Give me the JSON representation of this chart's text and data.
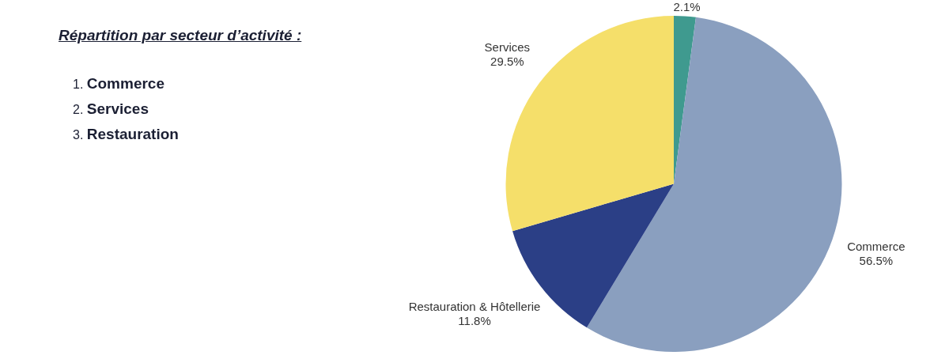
{
  "chart_data": {
    "type": "pie",
    "title": "Répartition par secteur d’activité :",
    "annotations": [
      "1. Commerce",
      "2. Services",
      "3. Restauration"
    ],
    "categories": [
      null,
      "Commerce",
      "Restauration & Hôtellerie",
      "Services"
    ],
    "values": [
      2.1,
      56.5,
      11.8,
      29.5
    ],
    "value_labels": [
      "2.1%",
      "56.5%",
      "11.8%",
      "29.5%"
    ],
    "colors": [
      "#3f9a8f",
      "#8a9fbf",
      "#2b3f86",
      "#f5df6a"
    ]
  }
}
